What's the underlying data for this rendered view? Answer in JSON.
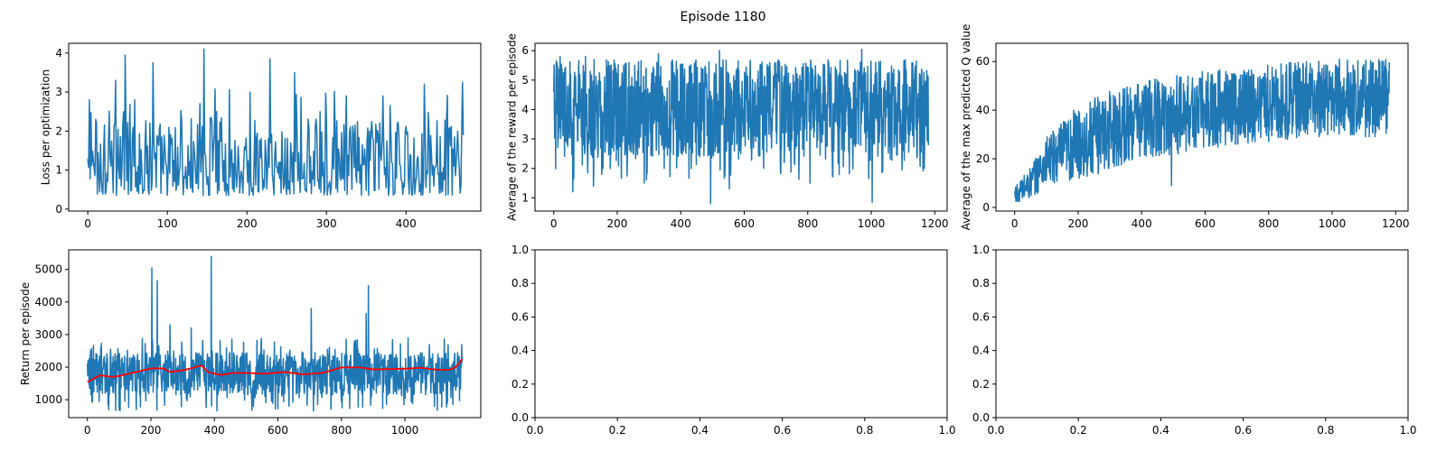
{
  "figure": {
    "title": "Episode 1180",
    "series_color": "#1f77b4",
    "moving_average_color": "#ff0000"
  },
  "chart_data": [
    {
      "type": "line",
      "title": "",
      "xlabel": "",
      "ylabel": "Loss per optimization",
      "xlim": [
        -24,
        494
      ],
      "ylim": [
        -0.05,
        4.25
      ],
      "xticks": [
        0,
        100,
        200,
        300,
        400
      ],
      "yticks": [
        0,
        1,
        2,
        3,
        4
      ],
      "grid": false,
      "series": [
        {
          "x_range": [
            0,
            472
          ],
          "color": "#1f77b4",
          "min": 0.2,
          "max": 4.1,
          "peaks": [
            [
              2,
              2.8
            ],
            [
              10,
              2.3
            ],
            [
              35,
              3.3
            ],
            [
              47,
              3.95
            ],
            [
              59,
              2.8
            ],
            [
              82,
              3.75
            ],
            [
              146,
              4.1
            ],
            [
              162,
              2.5
            ],
            [
              204,
              3.0
            ],
            [
              229,
              3.85
            ],
            [
              260,
              3.5
            ],
            [
              325,
              2.9
            ],
            [
              371,
              2.9
            ],
            [
              423,
              3.2
            ],
            [
              471,
              3.25
            ]
          ]
        }
      ]
    },
    {
      "type": "line",
      "title": "",
      "xlabel": "",
      "ylabel": "Average of the reward per episode",
      "xlim": [
        -59,
        1239
      ],
      "ylim": [
        0.55,
        6.25
      ],
      "xticks": [
        0,
        200,
        400,
        600,
        800,
        1000,
        1200
      ],
      "yticks": [
        1,
        2,
        3,
        4,
        5,
        6
      ],
      "grid": false,
      "series": [
        {
          "x_range": [
            0,
            1180
          ],
          "color": "#1f77b4",
          "min": 0.8,
          "max": 6.05,
          "dips": [
            [
              60,
              1.2
            ],
            [
              125,
              1.4
            ],
            [
              285,
              1.5
            ],
            [
              494,
              0.8
            ],
            [
              553,
              1.3
            ],
            [
              807,
              1.5
            ],
            [
              1003,
              0.85
            ],
            [
              1167,
              2.0
            ]
          ],
          "peaks": [
            [
              20,
              5.8
            ],
            [
              100,
              5.8
            ],
            [
              330,
              5.9
            ],
            [
              522,
              6.0
            ],
            [
              970,
              6.05
            ]
          ]
        }
      ]
    },
    {
      "type": "line",
      "title": "",
      "xlabel": "",
      "ylabel": "Average of the max predicted Q value",
      "xlim": [
        -59,
        1239
      ],
      "ylim": [
        -1.5,
        67.5
      ],
      "xticks": [
        0,
        200,
        400,
        600,
        800,
        1000,
        1200
      ],
      "yticks": [
        0,
        20,
        40,
        60
      ],
      "grid": false,
      "series": [
        {
          "x_range": [
            0,
            1180
          ],
          "color": "#1f77b4",
          "min": 2.5,
          "max": 64.5,
          "trend": [
            [
              0,
              5
            ],
            [
              50,
              10
            ],
            [
              100,
              19
            ],
            [
              200,
              26
            ],
            [
              300,
              32
            ],
            [
              400,
              36
            ],
            [
              600,
              40
            ],
            [
              800,
              43
            ],
            [
              1000,
              45
            ],
            [
              1180,
              45
            ]
          ],
          "dips": [
            [
              12,
              2.5
            ],
            [
              494,
              9
            ],
            [
              515,
              22
            ]
          ]
        }
      ]
    },
    {
      "type": "line",
      "title": "",
      "xlabel": "",
      "ylabel": "Return per episode",
      "xlim": [
        -59,
        1239
      ],
      "ylim": [
        450,
        5600
      ],
      "xticks": [
        0,
        200,
        400,
        600,
        800,
        1000
      ],
      "yticks": [
        1000,
        2000,
        3000,
        4000,
        5000
      ],
      "grid": false,
      "series": [
        {
          "name": "",
          "x_range": [
            0,
            1180
          ],
          "color": "#1f77b4",
          "min": 650,
          "max": 5400,
          "peaks": [
            [
              203,
              5050
            ],
            [
              220,
              4650
            ],
            [
              260,
              3300
            ],
            [
              327,
              3200
            ],
            [
              390,
              5400
            ],
            [
              705,
              3800
            ],
            [
              878,
              3650
            ],
            [
              885,
              4500
            ],
            [
              1010,
              2900
            ]
          ]
        },
        {
          "name": "",
          "color": "#ff0000",
          "x": [
            0,
            40,
            80,
            100,
            150,
            200,
            240,
            260,
            300,
            360,
            380,
            420,
            460,
            500,
            560,
            620,
            680,
            740,
            800,
            860,
            900,
            950,
            1000,
            1050,
            1100,
            1140,
            1160,
            1180
          ],
          "y": [
            1550,
            1750,
            1700,
            1730,
            1840,
            1960,
            1960,
            1850,
            1900,
            2050,
            1850,
            1760,
            1820,
            1820,
            1800,
            1850,
            1780,
            1820,
            1990,
            1990,
            1930,
            1940,
            1950,
            1980,
            1920,
            1920,
            2000,
            2250
          ]
        }
      ]
    },
    {
      "type": "line",
      "title": "",
      "xlabel": "",
      "ylabel": "",
      "xlim": [
        0,
        1
      ],
      "ylim": [
        0,
        1
      ],
      "xticks": [
        0.0,
        0.2,
        0.4,
        0.6,
        0.8,
        1.0
      ],
      "yticks": [
        0.0,
        0.2,
        0.4,
        0.6,
        0.8,
        1.0
      ],
      "grid": false,
      "series": []
    },
    {
      "type": "line",
      "title": "",
      "xlabel": "",
      "ylabel": "",
      "xlim": [
        0,
        1
      ],
      "ylim": [
        0,
        1
      ],
      "xticks": [
        0.0,
        0.2,
        0.4,
        0.6,
        0.8,
        1.0
      ],
      "yticks": [
        0.0,
        0.2,
        0.4,
        0.6,
        0.8,
        1.0
      ],
      "grid": false,
      "series": []
    }
  ]
}
